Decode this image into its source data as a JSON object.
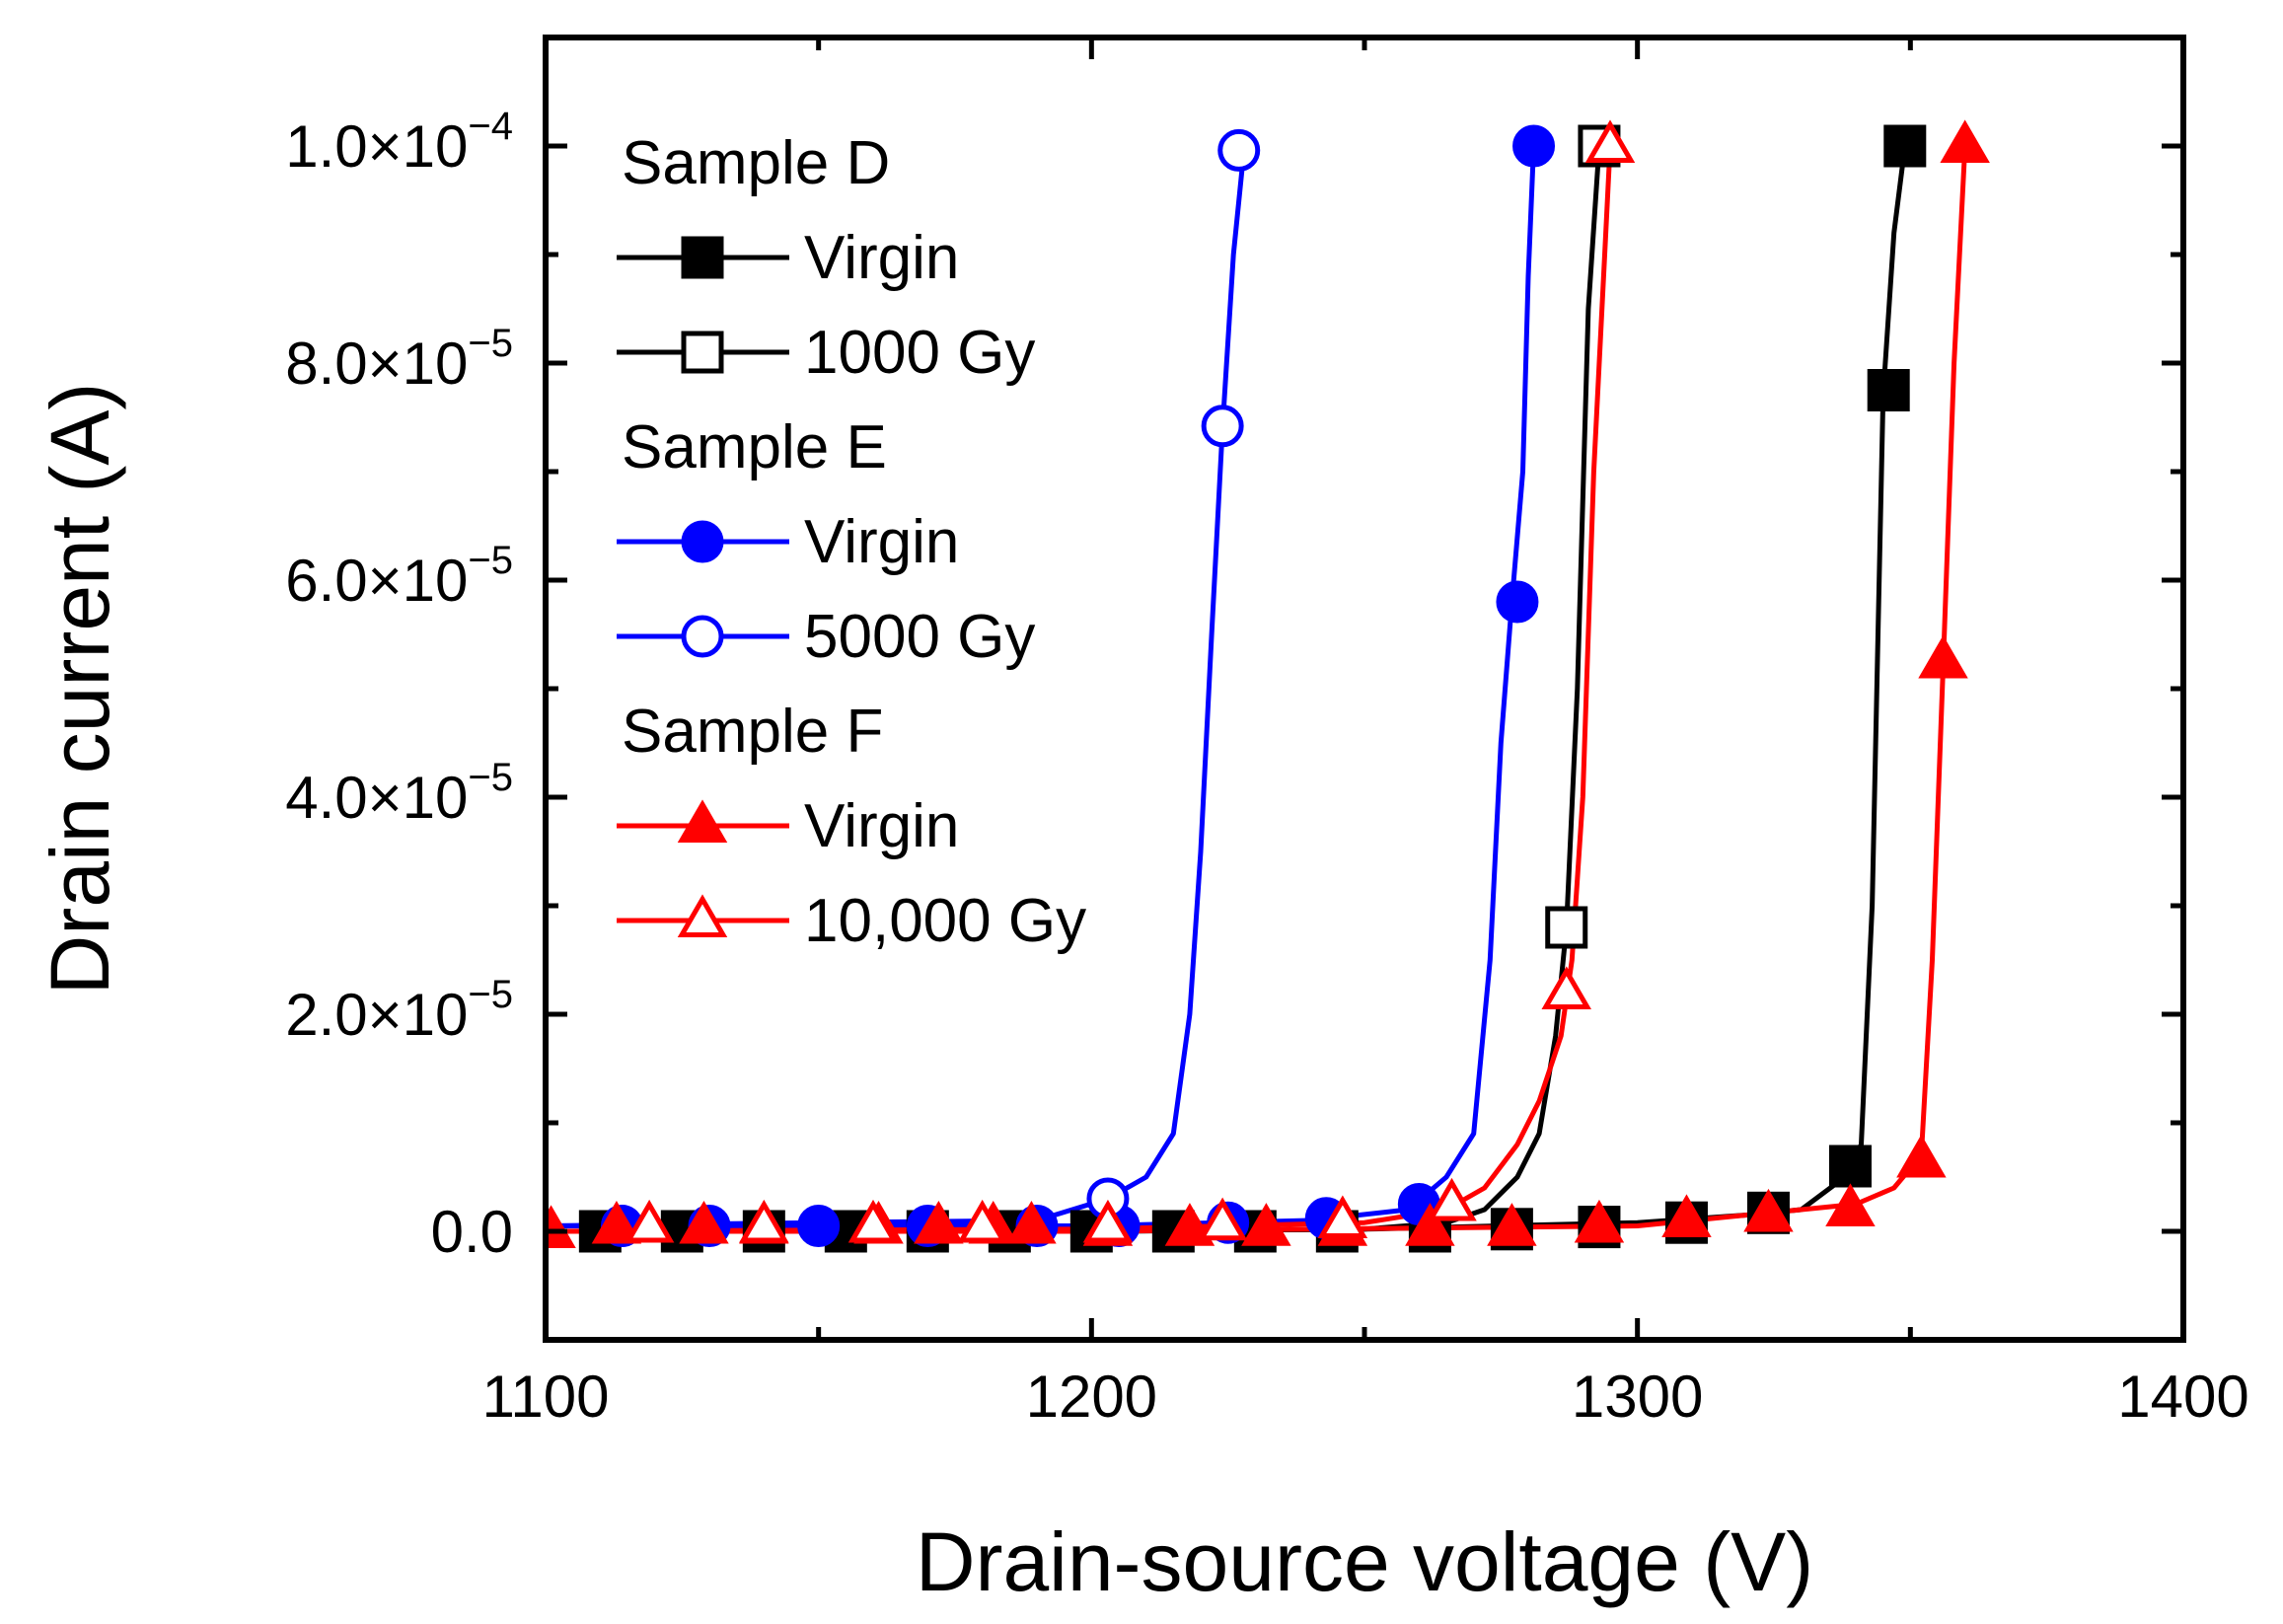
{
  "chart_data": {
    "type": "line",
    "title": "",
    "xlabel": "Drain-source voltage (V)",
    "ylabel": "Drain current (A)",
    "xlim": [
      1100,
      1400
    ],
    "ylim": [
      -1e-05,
      0.00011
    ],
    "x_ticks": [
      1100,
      1200,
      1300,
      1400
    ],
    "x_tick_labels": [
      "1100",
      "1200",
      "1300",
      "1400"
    ],
    "y_ticks": [
      0,
      2e-05,
      4e-05,
      6e-05,
      8e-05,
      0.0001
    ],
    "y_tick_labels": [
      {
        "mantissa": "0.0",
        "exponent": ""
      },
      {
        "mantissa": "2.0×10",
        "exponent": "−5"
      },
      {
        "mantissa": "4.0×10",
        "exponent": "−5"
      },
      {
        "mantissa": "6.0×10",
        "exponent": "−5"
      },
      {
        "mantissa": "8.0×10",
        "exponent": "−5"
      },
      {
        "mantissa": "1.0×10",
        "exponent": "−4"
      }
    ],
    "grid": false,
    "legend_position": "top-left",
    "legend": [
      {
        "group": "Sample D",
        "entries": [
          {
            "label": "Virgin",
            "series": 0
          },
          {
            "label": "1000 Gy",
            "series": 1
          }
        ]
      },
      {
        "group": "Sample E",
        "entries": [
          {
            "label": "Virgin",
            "series": 2
          },
          {
            "label": "5000 Gy",
            "series": 3
          }
        ]
      },
      {
        "group": "Sample F",
        "entries": [
          {
            "label": "Virgin",
            "series": 4
          },
          {
            "label": "10,000 Gy",
            "series": 5
          }
        ]
      }
    ],
    "series": [
      {
        "name": "Sample D Virgin",
        "color": "#000000",
        "marker": "square",
        "filled": true,
        "line_x": [
          1100,
          1150,
          1200,
          1250,
          1300,
          1320,
          1330,
          1338,
          1341,
          1343,
          1345,
          1347,
          1349
        ],
        "line_y": [
          0,
          0,
          0,
          2e-07,
          8e-07,
          1.5e-06,
          2e-06,
          5e-06,
          8e-06,
          3e-05,
          7.7e-05,
          9.2e-05,
          0.0001
        ],
        "markers_x": [
          1110,
          1125,
          1140,
          1155,
          1170,
          1185,
          1200,
          1215,
          1230,
          1245,
          1262,
          1277,
          1293,
          1309,
          1324,
          1339,
          1346,
          1349
        ],
        "markers_y": [
          0,
          0,
          0,
          0,
          0,
          0,
          0,
          0,
          0,
          0,
          0,
          2e-07,
          4e-07,
          8e-07,
          1.7e-06,
          6e-06,
          7.75e-05,
          0.0001
        ]
      },
      {
        "name": "Sample D 1000 Gy",
        "color": "#000000",
        "marker": "square",
        "filled": false,
        "line_x": [
          1100,
          1150,
          1200,
          1250,
          1265,
          1272,
          1278,
          1282,
          1285,
          1287,
          1289,
          1291,
          1293
        ],
        "line_y": [
          0,
          0,
          0,
          2e-07,
          8e-07,
          2e-06,
          5e-06,
          9e-06,
          1.8e-05,
          2.8e-05,
          5e-05,
          8.5e-05,
          0.0001
        ],
        "markers_x": [
          1287,
          1293
        ],
        "markers_y": [
          2.8e-05,
          0.0001
        ]
      },
      {
        "name": "Sample E Virgin",
        "color": "#0000ff",
        "marker": "circle",
        "filled": true,
        "line_x": [
          1100,
          1150,
          1200,
          1240,
          1258,
          1265,
          1270,
          1273,
          1275,
          1277,
          1279,
          1280,
          1281
        ],
        "line_y": [
          5e-07,
          5e-07,
          5e-07,
          1e-06,
          2e-06,
          5e-06,
          9e-06,
          2.5e-05,
          4.5e-05,
          5.8e-05,
          7e-05,
          8.8e-05,
          0.0001
        ],
        "markers_x": [
          1114,
          1130,
          1150,
          1170,
          1190,
          1205,
          1225,
          1243,
          1260,
          1278,
          1281
        ],
        "markers_y": [
          5e-07,
          5e-07,
          5e-07,
          5e-07,
          5e-07,
          5e-07,
          8e-07,
          1.2e-06,
          2.5e-06,
          5.8e-05,
          0.0001
        ]
      },
      {
        "name": "Sample E 5000 Gy",
        "color": "#0000ff",
        "marker": "circle",
        "filled": false,
        "line_x": [
          1100,
          1150,
          1190,
          1203,
          1210,
          1215,
          1218,
          1220,
          1222,
          1224,
          1226,
          1228
        ],
        "line_y": [
          5e-07,
          8e-07,
          1e-06,
          3e-06,
          5e-06,
          9e-06,
          2e-05,
          3.5e-05,
          5.5e-05,
          7.4e-05,
          9e-05,
          0.0001
        ],
        "markers_x": [
          1203,
          1224,
          1227
        ],
        "markers_y": [
          3e-06,
          7.42e-05,
          9.96e-05
        ]
      },
      {
        "name": "Sample F Virgin",
        "color": "#ff0000",
        "marker": "triangle",
        "filled": true,
        "line_x": [
          1100,
          1200,
          1300,
          1340,
          1347,
          1352,
          1354,
          1356,
          1358,
          1360
        ],
        "line_y": [
          0,
          0,
          5e-07,
          2.5e-06,
          4e-06,
          7e-06,
          2.5e-05,
          5.2e-05,
          8e-05,
          0.0001
        ],
        "markers_x": [
          1101,
          1113,
          1129,
          1140,
          1161,
          1172,
          1182,
          1189,
          1203,
          1218,
          1232,
          1246,
          1262,
          1277,
          1293,
          1309,
          1324,
          1339,
          1352,
          1356,
          1360
        ],
        "markers_y": [
          0,
          4e-07,
          4e-07,
          4e-07,
          4e-07,
          4e-07,
          4e-07,
          4e-07,
          2e-07,
          2e-07,
          2e-07,
          2e-07,
          2e-07,
          2e-07,
          5e-07,
          1e-06,
          1.5e-06,
          2e-06,
          6.5e-06,
          5.25e-05,
          0.0001
        ]
      },
      {
        "name": "Sample F 10,000 Gy",
        "color": "#ff0000",
        "marker": "triangle",
        "filled": false,
        "line_x": [
          1100,
          1200,
          1250,
          1265,
          1272,
          1278,
          1282,
          1286,
          1288,
          1290,
          1292,
          1294,
          1295
        ],
        "line_y": [
          0,
          2e-07,
          8e-07,
          2e-06,
          4e-06,
          8e-06,
          1.2e-05,
          1.8e-05,
          2.5e-05,
          4e-05,
          7e-05,
          9e-05,
          0.0001
        ],
        "markers_x": [
          1119,
          1140,
          1160,
          1180,
          1203,
          1224,
          1246,
          1266,
          1287,
          1295
        ],
        "markers_y": [
          5e-07,
          5e-07,
          5e-07,
          5e-07,
          5e-07,
          7e-07,
          9e-07,
          2.5e-06,
          2.2e-05,
          0.0001
        ]
      }
    ]
  }
}
